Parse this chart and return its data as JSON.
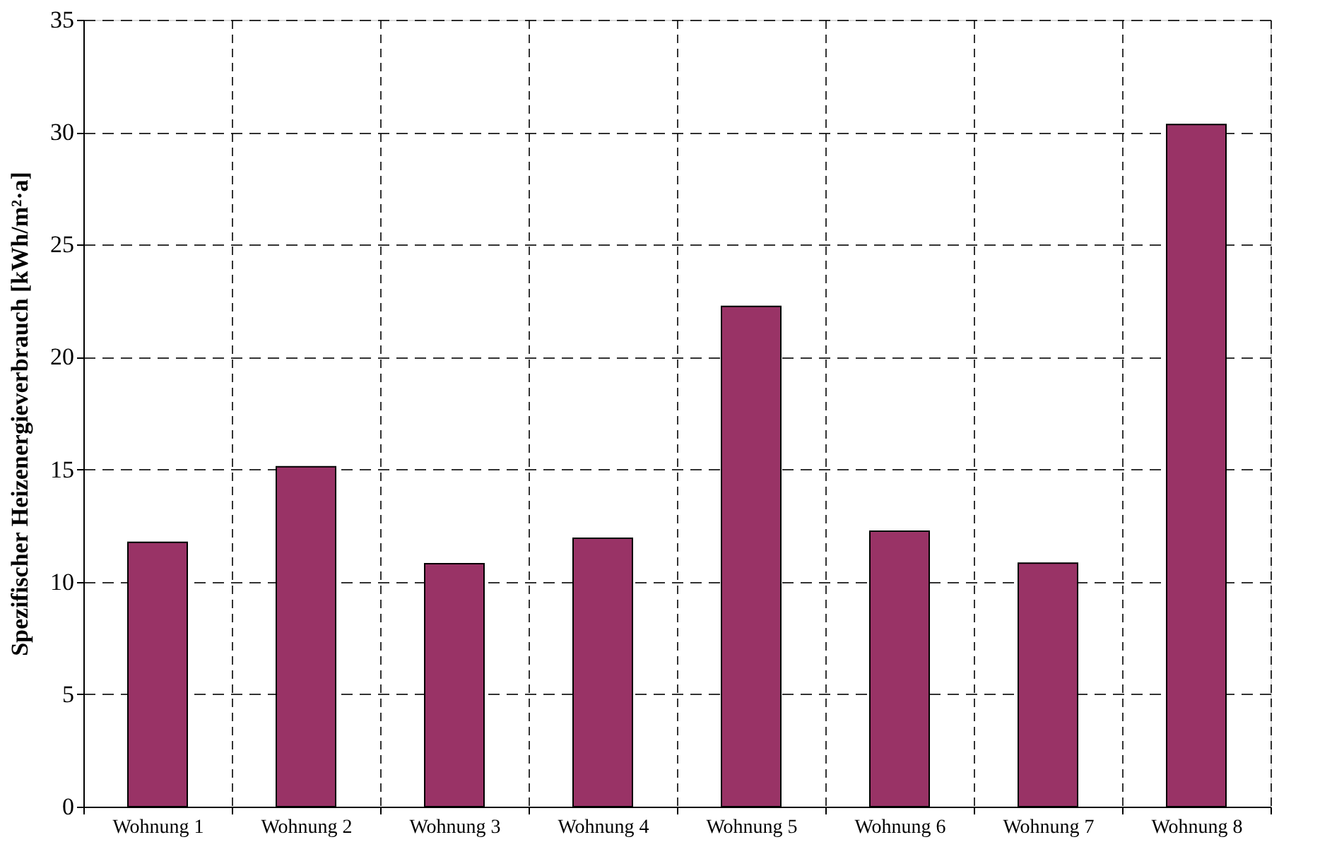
{
  "chart_data": {
    "type": "bar",
    "ylabel": "Spezifischer Heizenergieverbrauch [kWh/m²·a]",
    "categories": [
      "Wohnung 1",
      "Wohnung 2",
      "Wohnung 3",
      "Wohnung 4",
      "Wohnung 5",
      "Wohnung 6",
      "Wohnung 7",
      "Wohnung 8"
    ],
    "values": [
      11.76,
      15.12,
      10.81,
      11.94,
      22.25,
      12.25,
      10.83,
      30.34
    ],
    "color": "#993366",
    "ylim": [
      0,
      35
    ],
    "yticks": [
      0,
      5,
      10,
      15,
      20,
      25,
      30,
      35
    ],
    "grid": true
  }
}
